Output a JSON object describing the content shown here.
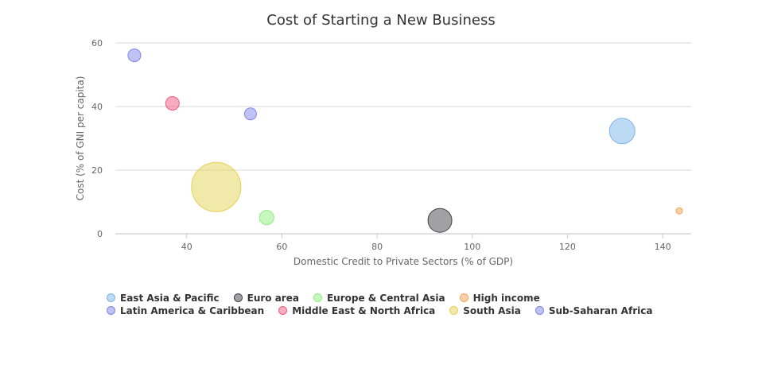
{
  "chart_data": {
    "type": "bubble",
    "title": "Cost of Starting a New Business",
    "xlabel": "Domestic Credit to Private Sectors (% of GDP)",
    "ylabel": "Cost (% of GNI per capita)",
    "xlim": [
      25,
      146
    ],
    "ylim": [
      0,
      60
    ],
    "xticks": [
      40,
      60,
      80,
      100,
      120,
      140
    ],
    "yticks": [
      0,
      20,
      40,
      60
    ],
    "grid": "horizontal",
    "legend_position": "bottom-left",
    "series": [
      {
        "name": "East Asia & Pacific",
        "color": "#7cb5ec",
        "x": 131.5,
        "y": 32.3,
        "size": 16
      },
      {
        "name": "Euro area",
        "color": "#434348",
        "x": 93.2,
        "y": 4.2,
        "size": 15
      },
      {
        "name": "Europe & Central Asia",
        "color": "#90ed7d",
        "x": 56.8,
        "y": 5.1,
        "size": 9
      },
      {
        "name": "High income",
        "color": "#f7a35c",
        "x": 143.5,
        "y": 7.2,
        "size": 4
      },
      {
        "name": "Latin America & Caribbean",
        "color": "#8085e9",
        "x": 29.0,
        "y": 56.1,
        "size": 8
      },
      {
        "name": "Middle East & North Africa",
        "color": "#f15c80",
        "x": 37.0,
        "y": 41.0,
        "size": 8.5
      },
      {
        "name": "South Asia",
        "color": "#e4d354",
        "x": 46.2,
        "y": 14.7,
        "size": 31
      },
      {
        "name": "Sub-Saharan Africa",
        "color": "#8085e9",
        "x": 53.4,
        "y": 37.7,
        "size": 7.5
      }
    ]
  }
}
